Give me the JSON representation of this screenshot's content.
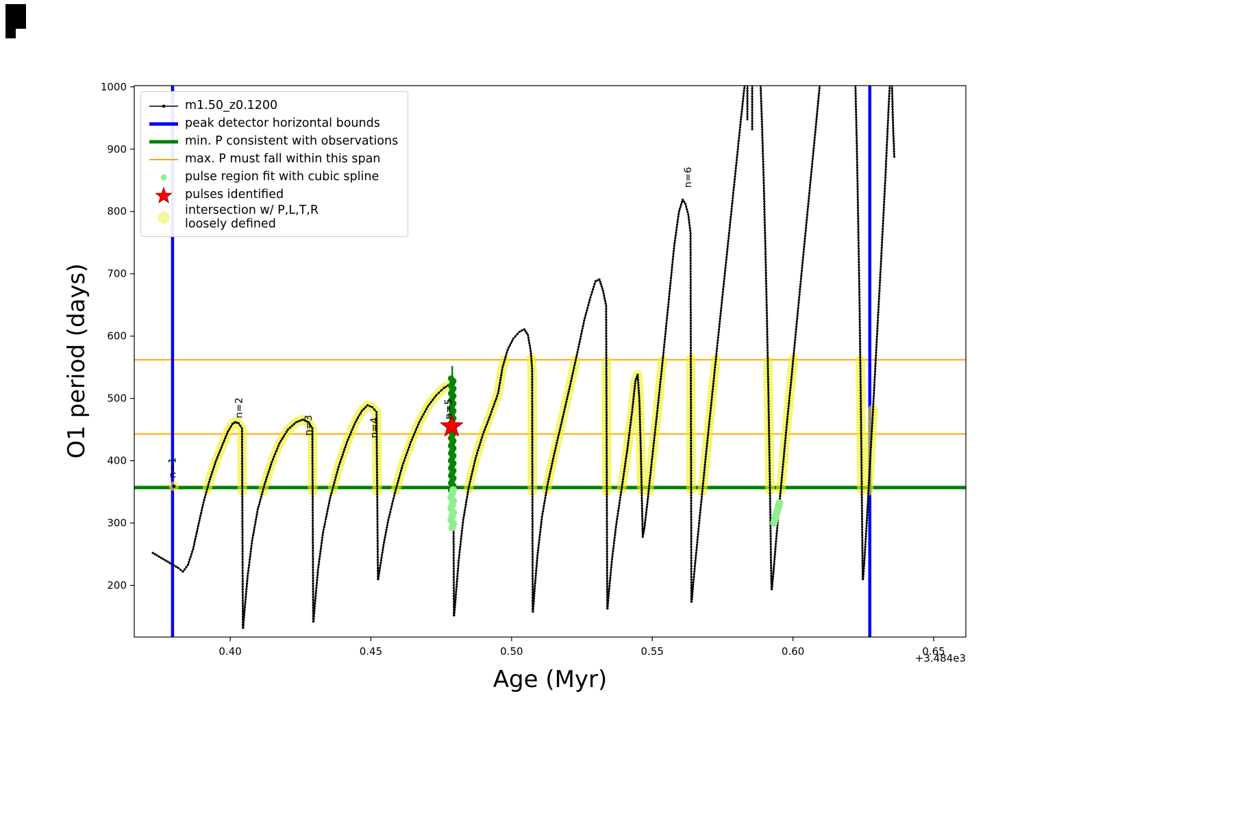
{
  "axes": {
    "xlabel": "Age (Myr)",
    "ylabel": "O1 period (days)",
    "offset_text": "+3.484e3",
    "xlim": [
      0.3659,
      0.66144
    ],
    "ylim": [
      117,
      1002
    ],
    "x_ticks": [
      {
        "v": 0.4,
        "label": "0.40"
      },
      {
        "v": 0.45,
        "label": "0.45"
      },
      {
        "v": 0.5,
        "label": "0.50"
      },
      {
        "v": 0.55,
        "label": "0.55"
      },
      {
        "v": 0.6,
        "label": "0.60"
      },
      {
        "v": 0.65,
        "label": "0.65"
      }
    ],
    "y_ticks": [
      200,
      300,
      400,
      500,
      600,
      700,
      800,
      900,
      1000
    ]
  },
  "legend": {
    "items": [
      {
        "label": "m1.50_z0.1200",
        "marker": "line-dot",
        "color": "#000000"
      },
      {
        "label": "peak detector horizontal bounds",
        "marker": "thick-line",
        "color": "#0000ff"
      },
      {
        "label": "min. P consistent with observations",
        "marker": "thick-line",
        "color": "#008000"
      },
      {
        "label": "max. P must fall within this span",
        "marker": "line",
        "color": "#ffa500"
      },
      {
        "label": "pulse region fit with cubic spline",
        "marker": "dot",
        "color": "#90ee90"
      },
      {
        "label": "pulses identified",
        "marker": "star",
        "color": "#ff0000"
      },
      {
        "label": "intersection w/ P,L,T,R\nloosely defined",
        "marker": "big-dot",
        "color": "#f4f48c"
      }
    ]
  },
  "chart_data": {
    "type": "line",
    "series_name": "m1.50_z0.1200",
    "title": "",
    "xlabel": "Age (Myr)",
    "ylabel": "O1 period (days)",
    "x_offset": "+3.484e3",
    "xlim": [
      0.3659,
      0.66144
    ],
    "ylim": [
      117,
      1002
    ],
    "colors": {
      "line": "#000000",
      "vline": "#0000ff",
      "hline_min": "#008000",
      "hline_max": "#ffa500",
      "yellow": "#f1f11e",
      "spline_dark": "#098409",
      "spline_light": "#90ee90",
      "star": "#ff0000",
      "star_edge": "#a00000"
    },
    "vlines": {
      "x": [
        0.3795,
        0.6273
      ],
      "label": "peak detector horizontal bounds"
    },
    "hline_min": {
      "y": 357,
      "label": "min. P consistent with observations"
    },
    "hlines_max": {
      "y": [
        443,
        562
      ],
      "label": "max. P must fall within this span"
    },
    "yellow_band": {
      "ymin": 350,
      "ymax": 564,
      "xmin": 0.385,
      "xmax": 0.6285,
      "exclude_x": [
        0.4768,
        0.482
      ],
      "extra_points": [
        [
          0.38,
          359
        ]
      ]
    },
    "extra_black_points": [
      [
        0.38,
        359
      ]
    ],
    "spline_region": {
      "x": 0.4789,
      "dark_y0": 352,
      "dark_y1": 535,
      "tip_y": 552,
      "light_y0": 293,
      "light_y1": 358,
      "light_patches": [
        {
          "x0": 0.5932,
          "x1": 0.5952,
          "y0": 300,
          "y1": 332
        }
      ]
    },
    "star": {
      "x": 0.4787,
      "y": 455,
      "label": "pulses identified"
    },
    "pulse_labels": [
      {
        "text": "n=1",
        "x": 0.3806,
        "y": 372
      },
      {
        "text": "n=2",
        "x": 0.4043,
        "y": 468
      },
      {
        "text": "n=3",
        "x": 0.4289,
        "y": 440
      },
      {
        "text": "n=4",
        "x": 0.4523,
        "y": 436
      },
      {
        "text": "n=5",
        "x": 0.4787,
        "y": 466
      },
      {
        "text": "n=6",
        "x": 0.5638,
        "y": 838
      }
    ],
    "segments": [
      [
        [
          0.3725,
          252
        ],
        [
          0.3755,
          244
        ],
        [
          0.3785,
          236
        ],
        [
          0.3815,
          228
        ],
        [
          0.3832,
          222
        ],
        [
          0.385,
          233
        ],
        [
          0.3868,
          258
        ],
        [
          0.3886,
          295
        ],
        [
          0.3905,
          333
        ],
        [
          0.3925,
          366
        ],
        [
          0.3948,
          398
        ],
        [
          0.3972,
          425
        ],
        [
          0.3992,
          447
        ],
        [
          0.4008,
          459
        ],
        [
          0.4018,
          462
        ],
        [
          0.403,
          460
        ],
        [
          0.4042,
          452
        ],
        [
          0.4045,
          132
        ]
      ],
      [
        [
          0.4046,
          132
        ],
        [
          0.4052,
          165
        ],
        [
          0.4062,
          215
        ],
        [
          0.4078,
          272
        ],
        [
          0.4098,
          322
        ],
        [
          0.4122,
          362
        ],
        [
          0.4148,
          398
        ],
        [
          0.4175,
          428
        ],
        [
          0.4205,
          450
        ],
        [
          0.4235,
          462
        ],
        [
          0.4258,
          466
        ],
        [
          0.4278,
          462
        ],
        [
          0.4292,
          452
        ],
        [
          0.4295,
          142
        ]
      ],
      [
        [
          0.4296,
          142
        ],
        [
          0.4302,
          175
        ],
        [
          0.4312,
          225
        ],
        [
          0.433,
          285
        ],
        [
          0.4355,
          340
        ],
        [
          0.4385,
          390
        ],
        [
          0.4415,
          430
        ],
        [
          0.4445,
          462
        ],
        [
          0.4468,
          480
        ],
        [
          0.4488,
          489
        ],
        [
          0.4505,
          486
        ],
        [
          0.452,
          478
        ],
        [
          0.4525,
          210
        ]
      ],
      [
        [
          0.4526,
          210
        ],
        [
          0.4532,
          228
        ],
        [
          0.4545,
          265
        ],
        [
          0.4562,
          305
        ],
        [
          0.4585,
          348
        ],
        [
          0.4612,
          392
        ],
        [
          0.4642,
          430
        ],
        [
          0.4672,
          462
        ],
        [
          0.4702,
          487
        ],
        [
          0.4732,
          505
        ],
        [
          0.476,
          517
        ],
        [
          0.4782,
          523
        ],
        [
          0.4792,
          516
        ],
        [
          0.4795,
          152
        ]
      ],
      [
        [
          0.4796,
          152
        ],
        [
          0.4802,
          185
        ],
        [
          0.4812,
          240
        ],
        [
          0.4828,
          305
        ],
        [
          0.4848,
          358
        ],
        [
          0.4872,
          404
        ],
        [
          0.4898,
          442
        ],
        [
          0.4925,
          474
        ],
        [
          0.4952,
          508
        ],
        [
          0.4968,
          550
        ],
        [
          0.4986,
          578
        ],
        [
          0.5006,
          596
        ],
        [
          0.5028,
          607
        ],
        [
          0.5045,
          611
        ],
        [
          0.5058,
          602
        ],
        [
          0.5068,
          576
        ],
        [
          0.5073,
          548
        ],
        [
          0.5075,
          158
        ]
      ],
      [
        [
          0.5076,
          158
        ],
        [
          0.5082,
          195
        ],
        [
          0.5092,
          248
        ],
        [
          0.5108,
          310
        ],
        [
          0.5128,
          362
        ],
        [
          0.5152,
          412
        ],
        [
          0.5178,
          462
        ],
        [
          0.5205,
          515
        ],
        [
          0.5232,
          570
        ],
        [
          0.5258,
          625
        ],
        [
          0.528,
          662
        ],
        [
          0.5298,
          688
        ],
        [
          0.5312,
          691
        ],
        [
          0.5325,
          673
        ],
        [
          0.5336,
          648
        ],
        [
          0.534,
          163
        ]
      ],
      [
        [
          0.5341,
          163
        ],
        [
          0.5347,
          195
        ],
        [
          0.5357,
          242
        ],
        [
          0.5372,
          298
        ],
        [
          0.5392,
          358
        ],
        [
          0.5412,
          420
        ],
        [
          0.5428,
          478
        ],
        [
          0.544,
          528
        ],
        [
          0.5448,
          538
        ],
        [
          0.5454,
          500
        ],
        [
          0.5459,
          420
        ],
        [
          0.5463,
          340
        ],
        [
          0.5466,
          278
        ],
        [
          0.5472,
          292
        ],
        [
          0.5482,
          330
        ],
        [
          0.5498,
          398
        ],
        [
          0.5518,
          480
        ],
        [
          0.5538,
          565
        ],
        [
          0.5558,
          655
        ],
        [
          0.5578,
          745
        ],
        [
          0.5595,
          800
        ],
        [
          0.5608,
          819
        ],
        [
          0.5618,
          812
        ],
        [
          0.5628,
          795
        ],
        [
          0.5636,
          765
        ],
        [
          0.5639,
          174
        ]
      ],
      [
        [
          0.564,
          174
        ],
        [
          0.5646,
          205
        ],
        [
          0.5656,
          252
        ],
        [
          0.5672,
          325
        ],
        [
          0.5692,
          415
        ],
        [
          0.5715,
          515
        ],
        [
          0.5738,
          615
        ],
        [
          0.5762,
          718
        ],
        [
          0.5788,
          830
        ],
        [
          0.5812,
          935
        ],
        [
          0.5828,
          1002
        ]
      ],
      [
        [
          0.5838,
          1002
        ],
        [
          0.5838,
          948
        ]
      ],
      [
        [
          0.5855,
          1002
        ],
        [
          0.5855,
          932
        ]
      ],
      [
        [
          0.5885,
          1002
        ],
        [
          0.589,
          940
        ],
        [
          0.5896,
          850
        ],
        [
          0.5902,
          740
        ],
        [
          0.5908,
          620
        ],
        [
          0.5913,
          500
        ],
        [
          0.5917,
          392
        ],
        [
          0.592,
          300
        ],
        [
          0.5922,
          232
        ],
        [
          0.5924,
          194
        ]
      ],
      [
        [
          0.5925,
          194
        ],
        [
          0.593,
          218
        ],
        [
          0.5938,
          262
        ],
        [
          0.595,
          322
        ],
        [
          0.5964,
          390
        ],
        [
          0.5978,
          458
        ],
        [
          0.5994,
          530
        ],
        [
          0.6012,
          615
        ],
        [
          0.6035,
          722
        ],
        [
          0.606,
          838
        ],
        [
          0.6082,
          940
        ],
        [
          0.6095,
          1002
        ]
      ],
      [
        [
          0.6222,
          1002
        ],
        [
          0.6227,
          905
        ],
        [
          0.6232,
          780
        ],
        [
          0.6237,
          640
        ],
        [
          0.6241,
          500
        ],
        [
          0.6244,
          380
        ],
        [
          0.6246,
          285
        ],
        [
          0.6248,
          210
        ]
      ],
      [
        [
          0.6249,
          210
        ],
        [
          0.6254,
          240
        ],
        [
          0.6262,
          300
        ],
        [
          0.6272,
          382
        ],
        [
          0.6284,
          478
        ],
        [
          0.6298,
          595
        ],
        [
          0.6313,
          720
        ],
        [
          0.6328,
          850
        ],
        [
          0.634,
          968
        ],
        [
          0.6344,
          1002
        ]
      ],
      [
        [
          0.6352,
          1002
        ],
        [
          0.6356,
          934
        ],
        [
          0.636,
          888
        ]
      ]
    ]
  }
}
